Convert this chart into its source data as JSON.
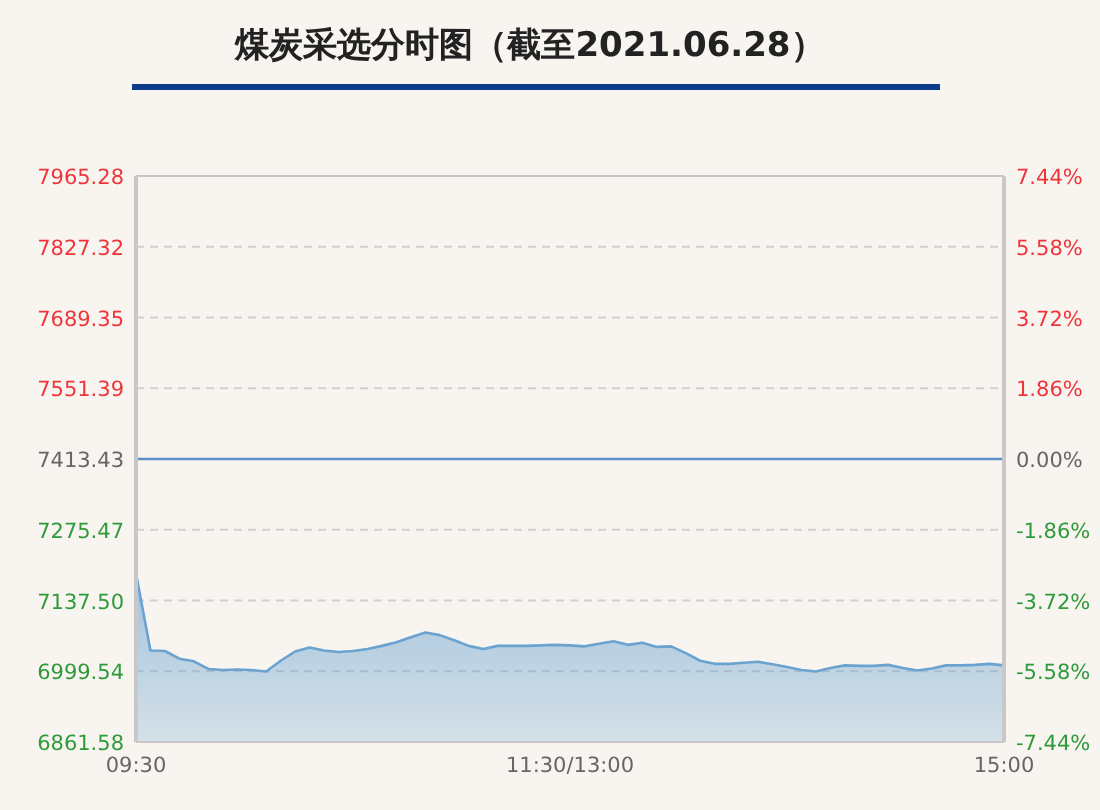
{
  "chart_data": {
    "type": "area",
    "title": "煤炭采选分时图（截至2021.06.28）",
    "color": "#6aa2d0",
    "grid": "y",
    "categories": [
      "09:30",
      null,
      null,
      null,
      null,
      null,
      null,
      null,
      null,
      null,
      null,
      null,
      null,
      null,
      null,
      null,
      null,
      null,
      null,
      null,
      null,
      null,
      null,
      null,
      null,
      null,
      null,
      null,
      null,
      null,
      "11:30/13:00",
      null,
      null,
      null,
      null,
      null,
      null,
      null,
      null,
      null,
      null,
      null,
      null,
      null,
      null,
      null,
      null,
      null,
      null,
      null,
      null,
      null,
      null,
      null,
      null,
      null,
      null,
      null,
      null,
      null,
      "15:00"
    ],
    "values": [
      7190,
      7040,
      7039,
      7024,
      7019,
      7004,
      7002,
      7003,
      7002,
      6999,
      7020,
      7038,
      7046,
      7040,
      7037,
      7039,
      7043,
      7049,
      7056,
      7066,
      7075,
      7070,
      7060,
      7049,
      7043,
      7049,
      7049,
      7049,
      7050,
      7051,
      7050,
      7048,
      7053,
      7058,
      7051,
      7055,
      7047,
      7048,
      7035,
      7020,
      7014,
      7014,
      7016,
      7018,
      7013,
      7008,
      7002,
      6999,
      7006,
      7011,
      7010,
      7010,
      7012,
      7006,
      7001,
      7005,
      7011,
      7011,
      7012,
      7014,
      7011
    ],
    "ylim": [
      6861.58,
      7965.28
    ],
    "yticks": [
      6861.58,
      6999.54,
      {
        "value": 7137.5,
        "label": "7137.50"
      },
      7275.47,
      7413.43,
      7551.39,
      7689.35,
      7827.32,
      7965.28
    ],
    "y2lim": [
      -7.44,
      7.44
    ],
    "y2ticks": [
      {
        "value": -7.44,
        "label": "-7.44%"
      },
      {
        "value": -5.58,
        "label": "-5.58%"
      },
      {
        "value": -3.72,
        "label": "-3.72%"
      },
      {
        "value": -1.86,
        "label": "-1.86%"
      },
      {
        "value": 0,
        "label": "0.00%"
      },
      {
        "value": 1.86,
        "label": "1.86%"
      },
      {
        "value": 3.72,
        "label": "3.72%"
      },
      {
        "value": 5.58,
        "label": "5.58%"
      },
      {
        "value": 7.44,
        "label": "7.44%"
      }
    ],
    "ref_lines": [
      {
        "axis": "y",
        "value": 7413.43,
        "color": "#5b8fc7"
      }
    ]
  }
}
